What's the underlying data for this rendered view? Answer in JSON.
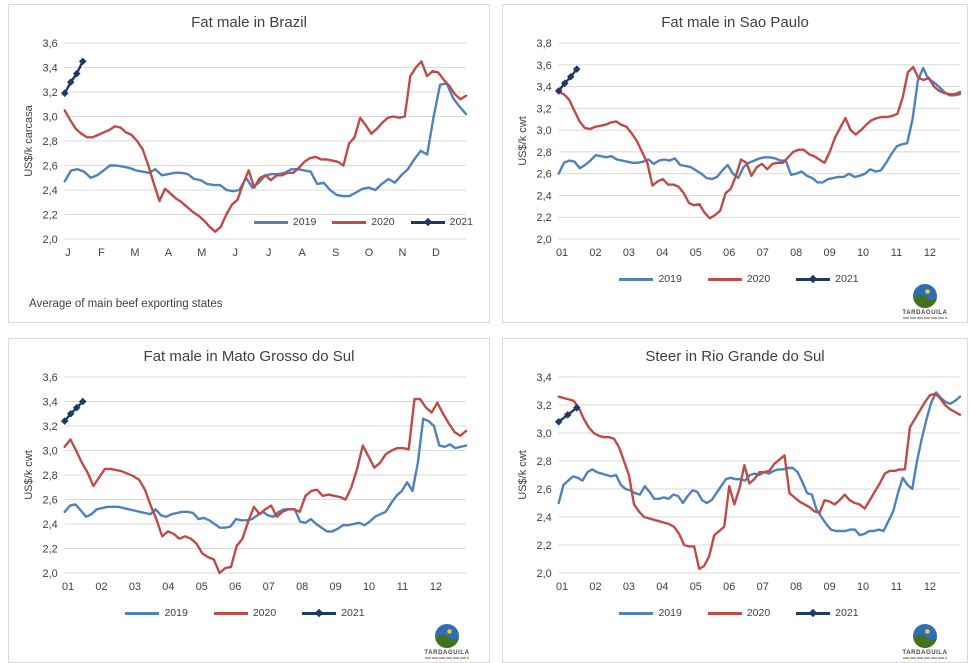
{
  "colors": {
    "grid": "#D9D9D9",
    "panel_border": "#D9D9D9",
    "text": "#404040",
    "series_2019": "#4F81BD",
    "series_2020": "#BE4B48",
    "series_2021": "#1F3864"
  },
  "logo": {
    "name": "TARDAGUILA"
  },
  "chart_data": [
    {
      "type": "line",
      "title": "Fat male in Brazil",
      "ylabel": "US$/k carcasa",
      "ymin": 2.0,
      "ymax": 3.6,
      "yticks": [
        "2,0",
        "2,2",
        "2,4",
        "2,6",
        "2,8",
        "3,0",
        "3,2",
        "3,4",
        "3,6"
      ],
      "xlabels": [
        "J",
        "F",
        "M",
        "A",
        "M",
        "J",
        "J",
        "A",
        "S",
        "O",
        "N",
        "D"
      ],
      "grid": "horizontal",
      "legend_position": "inside-bottom-right",
      "footnote": "Average of main beef exporting states",
      "series": [
        {
          "name": "2019",
          "color": "#4F81BD",
          "values": [
            2.47,
            2.56,
            2.57,
            2.55,
            2.5,
            2.52,
            2.56,
            2.6,
            2.6,
            2.59,
            2.58,
            2.56,
            2.55,
            2.54,
            2.57,
            2.52,
            2.53,
            2.54,
            2.54,
            2.53,
            2.49,
            2.48,
            2.45,
            2.44,
            2.44,
            2.4,
            2.39,
            2.4,
            2.5,
            2.42,
            2.46,
            2.52,
            2.53,
            2.53,
            2.54,
            2.57,
            2.57,
            2.56,
            2.55,
            2.45,
            2.46,
            2.4,
            2.36,
            2.35,
            2.35,
            2.38,
            2.41,
            2.42,
            2.4,
            2.45,
            2.49,
            2.46,
            2.52,
            2.57,
            2.65,
            2.72,
            2.69,
            3.0,
            3.26,
            3.27,
            3.15,
            3.08,
            3.02
          ]
        },
        {
          "name": "2020",
          "color": "#BE4B48",
          "values": [
            3.05,
            2.97,
            2.9,
            2.86,
            2.83,
            2.83,
            2.85,
            2.87,
            2.89,
            2.92,
            2.91,
            2.87,
            2.85,
            2.8,
            2.73,
            2.6,
            2.45,
            2.31,
            2.41,
            2.37,
            2.33,
            2.3,
            2.26,
            2.22,
            2.19,
            2.15,
            2.1,
            2.06,
            2.1,
            2.2,
            2.28,
            2.32,
            2.45,
            2.56,
            2.42,
            2.5,
            2.52,
            2.48,
            2.52,
            2.52,
            2.54,
            2.54,
            2.58,
            2.63,
            2.66,
            2.67,
            2.65,
            2.65,
            2.64,
            2.63,
            2.6,
            2.78,
            2.83,
            2.99,
            2.93,
            2.86,
            2.9,
            2.95,
            2.99,
            3.0,
            2.99,
            3.0,
            3.33,
            3.4,
            3.45,
            3.33,
            3.37,
            3.36,
            3.3,
            3.25,
            3.18,
            3.14,
            3.17
          ]
        },
        {
          "name": "2021",
          "color": "#1F3864",
          "marker": "diamond",
          "span": [
            0,
            0.045
          ],
          "values": [
            3.19,
            3.28,
            3.35,
            3.45
          ]
        }
      ]
    },
    {
      "type": "line",
      "title": "Fat male in Sao Paulo",
      "ylabel": "US$/k cwt",
      "ymin": 2.0,
      "ymax": 3.8,
      "yticks": [
        "2,0",
        "2,2",
        "2,4",
        "2,6",
        "2,8",
        "3,0",
        "3,2",
        "3,4",
        "3,6",
        "3,8"
      ],
      "xlabels": [
        "01",
        "02",
        "03",
        "04",
        "05",
        "06",
        "07",
        "08",
        "09",
        "10",
        "11",
        "12"
      ],
      "grid": "horizontal",
      "legend_position": "below-center",
      "series": [
        {
          "name": "2019",
          "color": "#4F81BD",
          "values": [
            2.6,
            2.7,
            2.72,
            2.71,
            2.65,
            2.68,
            2.72,
            2.77,
            2.76,
            2.75,
            2.76,
            2.73,
            2.72,
            2.71,
            2.7,
            2.7,
            2.71,
            2.73,
            2.69,
            2.72,
            2.73,
            2.72,
            2.74,
            2.68,
            2.67,
            2.66,
            2.63,
            2.6,
            2.56,
            2.55,
            2.57,
            2.63,
            2.68,
            2.6,
            2.56,
            2.66,
            2.7,
            2.72,
            2.74,
            2.75,
            2.75,
            2.74,
            2.72,
            2.72,
            2.59,
            2.6,
            2.62,
            2.58,
            2.56,
            2.52,
            2.52,
            2.55,
            2.56,
            2.57,
            2.57,
            2.6,
            2.57,
            2.58,
            2.6,
            2.64,
            2.62,
            2.63,
            2.7,
            2.78,
            2.85,
            2.87,
            2.88,
            3.1,
            3.45,
            3.57,
            3.47,
            3.44,
            3.4,
            3.35,
            3.32,
            3.32,
            3.33
          ]
        },
        {
          "name": "2020",
          "color": "#BE4B48",
          "values": [
            3.35,
            3.33,
            3.28,
            3.18,
            3.08,
            3.02,
            3.01,
            3.03,
            3.04,
            3.05,
            3.07,
            3.08,
            3.05,
            3.03,
            2.97,
            2.9,
            2.8,
            2.7,
            2.49,
            2.53,
            2.55,
            2.5,
            2.5,
            2.48,
            2.42,
            2.33,
            2.31,
            2.32,
            2.24,
            2.19,
            2.22,
            2.26,
            2.42,
            2.46,
            2.58,
            2.73,
            2.7,
            2.58,
            2.66,
            2.69,
            2.64,
            2.69,
            2.7,
            2.7,
            2.75,
            2.8,
            2.82,
            2.82,
            2.78,
            2.76,
            2.73,
            2.7,
            2.8,
            2.93,
            3.02,
            3.11,
            3.0,
            2.96,
            3.0,
            3.05,
            3.09,
            3.11,
            3.12,
            3.12,
            3.13,
            3.15,
            3.3,
            3.53,
            3.58,
            3.48,
            3.46,
            3.48,
            3.4,
            3.36,
            3.34,
            3.33,
            3.33,
            3.35
          ]
        },
        {
          "name": "2021",
          "color": "#1F3864",
          "marker": "diamond",
          "span": [
            0,
            0.045
          ],
          "values": [
            3.36,
            3.43,
            3.49,
            3.56
          ]
        }
      ]
    },
    {
      "type": "line",
      "title": "Fat male in Mato Grosso do Sul",
      "ylabel": "US$/k cwt",
      "ymin": 2.0,
      "ymax": 3.6,
      "yticks": [
        "2,0",
        "2,2",
        "2,4",
        "2,6",
        "2,8",
        "3,0",
        "3,2",
        "3,4",
        "3,6"
      ],
      "xlabels": [
        "01",
        "02",
        "03",
        "04",
        "05",
        "06",
        "07",
        "08",
        "09",
        "10",
        "11",
        "12"
      ],
      "grid": "horizontal",
      "legend_position": "below-center",
      "series": [
        {
          "name": "2019",
          "color": "#4F81BD",
          "values": [
            2.5,
            2.55,
            2.56,
            2.51,
            2.46,
            2.48,
            2.52,
            2.53,
            2.54,
            2.54,
            2.54,
            2.53,
            2.52,
            2.51,
            2.5,
            2.49,
            2.48,
            2.52,
            2.47,
            2.46,
            2.48,
            2.49,
            2.5,
            2.5,
            2.49,
            2.44,
            2.45,
            2.43,
            2.4,
            2.37,
            2.37,
            2.38,
            2.44,
            2.43,
            2.43,
            2.44,
            2.47,
            2.5,
            2.47,
            2.46,
            2.5,
            2.52,
            2.52,
            2.52,
            2.42,
            2.41,
            2.44,
            2.4,
            2.37,
            2.34,
            2.34,
            2.36,
            2.39,
            2.39,
            2.4,
            2.41,
            2.39,
            2.42,
            2.46,
            2.48,
            2.5,
            2.57,
            2.63,
            2.67,
            2.74,
            2.67,
            2.9,
            3.26,
            3.24,
            3.2,
            3.04,
            3.03,
            3.05,
            3.02,
            3.03,
            3.04
          ]
        },
        {
          "name": "2020",
          "color": "#BE4B48",
          "values": [
            3.03,
            3.09,
            3.0,
            2.9,
            2.82,
            2.71,
            2.78,
            2.85,
            2.85,
            2.84,
            2.83,
            2.81,
            2.79,
            2.76,
            2.68,
            2.55,
            2.44,
            2.3,
            2.34,
            2.32,
            2.28,
            2.3,
            2.28,
            2.24,
            2.16,
            2.13,
            2.11,
            2.0,
            2.04,
            2.05,
            2.22,
            2.28,
            2.42,
            2.54,
            2.48,
            2.52,
            2.55,
            2.46,
            2.5,
            2.52,
            2.52,
            2.5,
            2.63,
            2.67,
            2.68,
            2.63,
            2.64,
            2.63,
            2.62,
            2.6,
            2.7,
            2.85,
            3.04,
            2.95,
            2.86,
            2.9,
            2.97,
            3.0,
            3.02,
            3.02,
            3.01,
            3.42,
            3.42,
            3.35,
            3.31,
            3.39,
            3.3,
            3.22,
            3.15,
            3.12,
            3.16
          ]
        },
        {
          "name": "2021",
          "color": "#1F3864",
          "marker": "diamond",
          "span": [
            0,
            0.045
          ],
          "values": [
            3.24,
            3.3,
            3.35,
            3.4
          ]
        }
      ]
    },
    {
      "type": "line",
      "title": "Steer in Rio Grande do Sul",
      "ylabel": "US$/k cwt",
      "ymin": 2.0,
      "ymax": 3.4,
      "yticks": [
        "2,0",
        "2,2",
        "2,4",
        "2,6",
        "2,8",
        "3,0",
        "3,2",
        "3,4"
      ],
      "xlabels": [
        "01",
        "02",
        "03",
        "04",
        "05",
        "06",
        "07",
        "08",
        "09",
        "10",
        "11",
        "12"
      ],
      "grid": "horizontal",
      "legend_position": "below-center",
      "series": [
        {
          "name": "2019",
          "color": "#4F81BD",
          "values": [
            2.5,
            2.63,
            2.66,
            2.69,
            2.68,
            2.66,
            2.72,
            2.74,
            2.72,
            2.71,
            2.7,
            2.69,
            2.7,
            2.63,
            2.6,
            2.59,
            2.57,
            2.56,
            2.62,
            2.58,
            2.53,
            2.53,
            2.54,
            2.53,
            2.56,
            2.55,
            2.5,
            2.55,
            2.59,
            2.58,
            2.52,
            2.5,
            2.52,
            2.57,
            2.62,
            2.67,
            2.68,
            2.67,
            2.67,
            2.66,
            2.7,
            2.71,
            2.7,
            2.72,
            2.71,
            2.73,
            2.74,
            2.74,
            2.75,
            2.75,
            2.72,
            2.65,
            2.57,
            2.56,
            2.45,
            2.4,
            2.35,
            2.31,
            2.3,
            2.3,
            2.3,
            2.31,
            2.31,
            2.27,
            2.28,
            2.3,
            2.3,
            2.31,
            2.3,
            2.37,
            2.44,
            2.57,
            2.68,
            2.63,
            2.6,
            2.8,
            2.96,
            3.1,
            3.22,
            3.29,
            3.25,
            3.22,
            3.21,
            3.23,
            3.26
          ]
        },
        {
          "name": "2020",
          "color": "#BE4B48",
          "values": [
            3.26,
            3.25,
            3.24,
            3.23,
            3.18,
            3.1,
            3.04,
            3.0,
            2.98,
            2.97,
            2.97,
            2.96,
            2.9,
            2.8,
            2.7,
            2.49,
            2.44,
            2.4,
            2.39,
            2.38,
            2.37,
            2.36,
            2.35,
            2.33,
            2.28,
            2.2,
            2.19,
            2.19,
            2.03,
            2.05,
            2.12,
            2.27,
            2.3,
            2.33,
            2.62,
            2.49,
            2.6,
            2.77,
            2.64,
            2.67,
            2.72,
            2.72,
            2.73,
            2.78,
            2.81,
            2.84,
            2.57,
            2.54,
            2.51,
            2.49,
            2.47,
            2.44,
            2.43,
            2.52,
            2.51,
            2.49,
            2.52,
            2.56,
            2.52,
            2.5,
            2.49,
            2.46,
            2.52,
            2.58,
            2.64,
            2.71,
            2.73,
            2.73,
            2.74,
            2.74,
            3.04,
            3.1,
            3.16,
            3.22,
            3.27,
            3.28,
            3.25,
            3.2,
            3.17,
            3.15,
            3.13
          ]
        },
        {
          "name": "2021",
          "color": "#1F3864",
          "marker": "diamond",
          "span": [
            0,
            0.045
          ],
          "values": [
            3.08,
            3.13,
            3.18
          ]
        }
      ]
    }
  ]
}
